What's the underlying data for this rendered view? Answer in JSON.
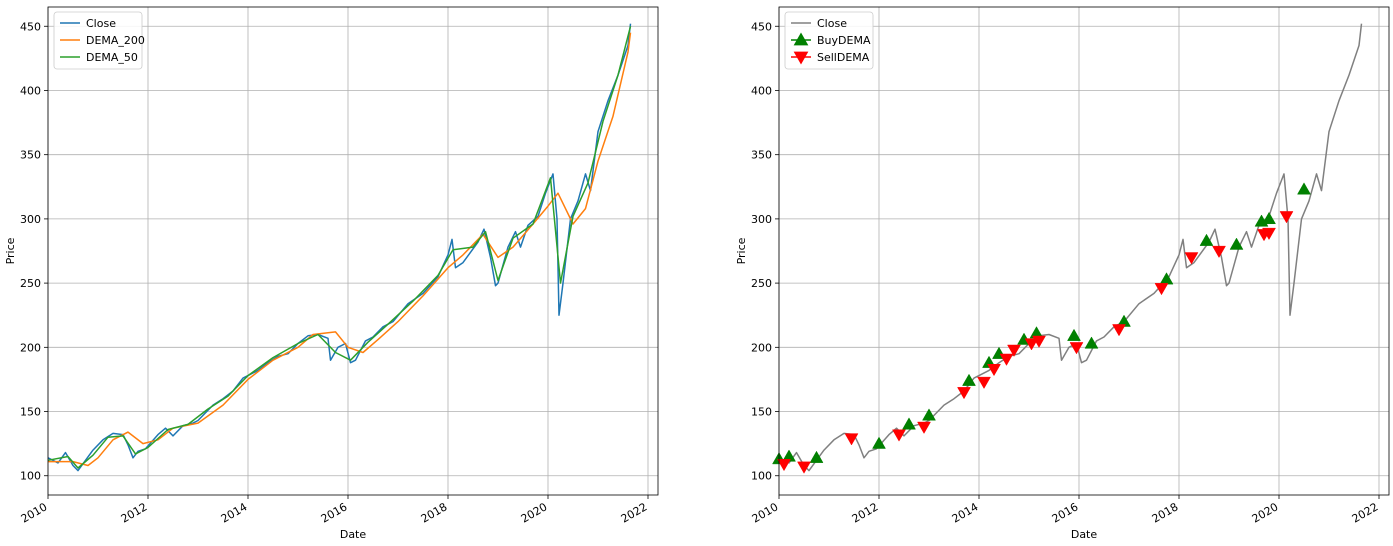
{
  "chart_data": [
    {
      "type": "line",
      "xlabel": "Date",
      "ylabel": "Price",
      "xlim": [
        2010.0,
        2022.2
      ],
      "ylim": [
        85,
        465
      ],
      "x_ticks": [
        2010,
        2012,
        2014,
        2016,
        2018,
        2020,
        2022
      ],
      "y_ticks": [
        100,
        150,
        200,
        250,
        300,
        350,
        400,
        450
      ],
      "grid": true,
      "legend": "upper-left",
      "series": [
        {
          "name": "Close",
          "color": "#1f77b4",
          "points": [
            [
              2010.0,
              114
            ],
            [
              2010.2,
              110
            ],
            [
              2010.35,
              118
            ],
            [
              2010.5,
              108
            ],
            [
              2010.6,
              104
            ],
            [
              2010.75,
              112
            ],
            [
              2010.9,
              120
            ],
            [
              2011.1,
              128
            ],
            [
              2011.3,
              133
            ],
            [
              2011.5,
              132
            ],
            [
              2011.6,
              124
            ],
            [
              2011.7,
              114
            ],
            [
              2011.8,
              119
            ],
            [
              2011.95,
              121
            ],
            [
              2012.2,
              132
            ],
            [
              2012.35,
              137
            ],
            [
              2012.5,
              131
            ],
            [
              2012.7,
              139
            ],
            [
              2012.9,
              141
            ],
            [
              2013.0,
              143
            ],
            [
              2013.3,
              155
            ],
            [
              2013.5,
              160
            ],
            [
              2013.7,
              166
            ],
            [
              2013.9,
              176
            ],
            [
              2014.0,
              178
            ],
            [
              2014.2,
              182
            ],
            [
              2014.4,
              188
            ],
            [
              2014.6,
              193
            ],
            [
              2014.8,
              195
            ],
            [
              2015.0,
              203
            ],
            [
              2015.2,
              209
            ],
            [
              2015.4,
              210
            ],
            [
              2015.6,
              207
            ],
            [
              2015.65,
              190
            ],
            [
              2015.8,
              200
            ],
            [
              2015.95,
              203
            ],
            [
              2016.05,
              188
            ],
            [
              2016.15,
              190
            ],
            [
              2016.35,
              205
            ],
            [
              2016.5,
              208
            ],
            [
              2016.7,
              216
            ],
            [
              2016.9,
              220
            ],
            [
              2017.2,
              234
            ],
            [
              2017.5,
              242
            ],
            [
              2017.8,
              255
            ],
            [
              2018.0,
              272
            ],
            [
              2018.08,
              284
            ],
            [
              2018.15,
              262
            ],
            [
              2018.3,
              266
            ],
            [
              2018.6,
              282
            ],
            [
              2018.72,
              292
            ],
            [
              2018.85,
              270
            ],
            [
              2018.95,
              248
            ],
            [
              2019.0,
              250
            ],
            [
              2019.2,
              278
            ],
            [
              2019.35,
              290
            ],
            [
              2019.45,
              278
            ],
            [
              2019.6,
              295
            ],
            [
              2019.8,
              302
            ],
            [
              2019.95,
              320
            ],
            [
              2020.1,
              335
            ],
            [
              2020.18,
              300
            ],
            [
              2020.22,
              225
            ],
            [
              2020.3,
              250
            ],
            [
              2020.45,
              300
            ],
            [
              2020.6,
              314
            ],
            [
              2020.75,
              335
            ],
            [
              2020.85,
              322
            ],
            [
              2021.0,
              368
            ],
            [
              2021.2,
              392
            ],
            [
              2021.4,
              412
            ],
            [
              2021.6,
              435
            ],
            [
              2021.65,
              452
            ]
          ]
        },
        {
          "name": "DEMA_200",
          "color": "#ff7f0e",
          "points": [
            [
              2010.0,
              111
            ],
            [
              2010.5,
              111
            ],
            [
              2010.8,
              108
            ],
            [
              2011.0,
              114
            ],
            [
              2011.3,
              128
            ],
            [
              2011.6,
              134
            ],
            [
              2011.9,
              125
            ],
            [
              2012.2,
              128
            ],
            [
              2012.5,
              137
            ],
            [
              2013.0,
              141
            ],
            [
              2013.5,
              155
            ],
            [
              2014.0,
              175
            ],
            [
              2014.5,
              190
            ],
            [
              2015.0,
              200
            ],
            [
              2015.3,
              210
            ],
            [
              2015.75,
              212
            ],
            [
              2016.0,
              200
            ],
            [
              2016.3,
              196
            ],
            [
              2016.6,
              206
            ],
            [
              2017.0,
              220
            ],
            [
              2017.5,
              240
            ],
            [
              2018.0,
              262
            ],
            [
              2018.3,
              272
            ],
            [
              2018.7,
              288
            ],
            [
              2019.0,
              270
            ],
            [
              2019.3,
              278
            ],
            [
              2019.7,
              296
            ],
            [
              2020.0,
              310
            ],
            [
              2020.2,
              320
            ],
            [
              2020.5,
              296
            ],
            [
              2020.75,
              308
            ],
            [
              2021.0,
              345
            ],
            [
              2021.3,
              380
            ],
            [
              2021.6,
              430
            ],
            [
              2021.65,
              445
            ]
          ]
        },
        {
          "name": "DEMA_50",
          "color": "#2ca02c",
          "points": [
            [
              2010.0,
              112
            ],
            [
              2010.4,
              115
            ],
            [
              2010.6,
              106
            ],
            [
              2010.9,
              116
            ],
            [
              2011.2,
              130
            ],
            [
              2011.5,
              131
            ],
            [
              2011.75,
              117
            ],
            [
              2012.0,
              122
            ],
            [
              2012.4,
              136
            ],
            [
              2012.8,
              140
            ],
            [
              2013.2,
              152
            ],
            [
              2013.6,
              162
            ],
            [
              2014.0,
              178
            ],
            [
              2014.5,
              192
            ],
            [
              2015.0,
              203
            ],
            [
              2015.4,
              210
            ],
            [
              2015.75,
              196
            ],
            [
              2016.05,
              190
            ],
            [
              2016.4,
              204
            ],
            [
              2016.8,
              218
            ],
            [
              2017.3,
              236
            ],
            [
              2017.8,
              256
            ],
            [
              2018.1,
              276
            ],
            [
              2018.5,
              278
            ],
            [
              2018.75,
              290
            ],
            [
              2019.0,
              252
            ],
            [
              2019.3,
              285
            ],
            [
              2019.7,
              296
            ],
            [
              2020.05,
              332
            ],
            [
              2020.25,
              250
            ],
            [
              2020.5,
              302
            ],
            [
              2020.8,
              328
            ],
            [
              2021.1,
              376
            ],
            [
              2021.4,
              412
            ],
            [
              2021.65,
              450
            ]
          ]
        }
      ]
    },
    {
      "type": "line",
      "xlabel": "Date",
      "ylabel": "Price",
      "xlim": [
        2010.0,
        2022.2
      ],
      "ylim": [
        85,
        465
      ],
      "x_ticks": [
        2010,
        2012,
        2014,
        2016,
        2018,
        2020,
        2022
      ],
      "y_ticks": [
        100,
        150,
        200,
        250,
        300,
        350,
        400,
        450
      ],
      "grid": true,
      "legend": "upper-left",
      "series": [
        {
          "name": "Close",
          "color": "#808080",
          "points": [
            [
              2010.0,
              114
            ],
            [
              2010.2,
              110
            ],
            [
              2010.35,
              118
            ],
            [
              2010.5,
              108
            ],
            [
              2010.6,
              104
            ],
            [
              2010.75,
              112
            ],
            [
              2010.9,
              120
            ],
            [
              2011.1,
              128
            ],
            [
              2011.3,
              133
            ],
            [
              2011.5,
              132
            ],
            [
              2011.6,
              124
            ],
            [
              2011.7,
              114
            ],
            [
              2011.8,
              119
            ],
            [
              2011.95,
              121
            ],
            [
              2012.2,
              132
            ],
            [
              2012.35,
              137
            ],
            [
              2012.5,
              131
            ],
            [
              2012.7,
              139
            ],
            [
              2012.9,
              141
            ],
            [
              2013.0,
              143
            ],
            [
              2013.3,
              155
            ],
            [
              2013.5,
              160
            ],
            [
              2013.7,
              166
            ],
            [
              2013.9,
              176
            ],
            [
              2014.0,
              178
            ],
            [
              2014.2,
              182
            ],
            [
              2014.4,
              188
            ],
            [
              2014.6,
              193
            ],
            [
              2014.8,
              195
            ],
            [
              2015.0,
              203
            ],
            [
              2015.2,
              209
            ],
            [
              2015.4,
              210
            ],
            [
              2015.6,
              207
            ],
            [
              2015.65,
              190
            ],
            [
              2015.8,
              200
            ],
            [
              2015.95,
              203
            ],
            [
              2016.05,
              188
            ],
            [
              2016.15,
              190
            ],
            [
              2016.35,
              205
            ],
            [
              2016.5,
              208
            ],
            [
              2016.7,
              216
            ],
            [
              2016.9,
              220
            ],
            [
              2017.2,
              234
            ],
            [
              2017.5,
              242
            ],
            [
              2017.8,
              255
            ],
            [
              2018.0,
              272
            ],
            [
              2018.08,
              284
            ],
            [
              2018.15,
              262
            ],
            [
              2018.3,
              266
            ],
            [
              2018.6,
              282
            ],
            [
              2018.72,
              292
            ],
            [
              2018.85,
              270
            ],
            [
              2018.95,
              248
            ],
            [
              2019.0,
              250
            ],
            [
              2019.2,
              278
            ],
            [
              2019.35,
              290
            ],
            [
              2019.45,
              278
            ],
            [
              2019.6,
              295
            ],
            [
              2019.8,
              302
            ],
            [
              2019.95,
              320
            ],
            [
              2020.1,
              335
            ],
            [
              2020.18,
              300
            ],
            [
              2020.22,
              225
            ],
            [
              2020.3,
              250
            ],
            [
              2020.45,
              300
            ],
            [
              2020.6,
              314
            ],
            [
              2020.75,
              335
            ],
            [
              2020.85,
              322
            ],
            [
              2021.0,
              368
            ],
            [
              2021.2,
              392
            ],
            [
              2021.4,
              412
            ],
            [
              2021.6,
              435
            ],
            [
              2021.65,
              452
            ]
          ]
        },
        {
          "name": "BuyDEMA",
          "color": "#008000",
          "marker": "triangle-up",
          "points": [
            [
              2010.0,
              113
            ],
            [
              2010.2,
              115
            ],
            [
              2010.75,
              114
            ],
            [
              2012.0,
              125
            ],
            [
              2012.6,
              140
            ],
            [
              2013.0,
              147
            ],
            [
              2013.8,
              174
            ],
            [
              2014.2,
              188
            ],
            [
              2014.4,
              195
            ],
            [
              2014.9,
              206
            ],
            [
              2015.15,
              211
            ],
            [
              2015.9,
              209
            ],
            [
              2016.25,
              203
            ],
            [
              2016.9,
              220
            ],
            [
              2017.75,
              253
            ],
            [
              2018.55,
              283
            ],
            [
              2019.15,
              280
            ],
            [
              2019.65,
              298
            ],
            [
              2019.8,
              300
            ],
            [
              2020.5,
              323
            ]
          ]
        },
        {
          "name": "SellDEMA",
          "color": "#ff0000",
          "marker": "triangle-down",
          "points": [
            [
              2010.1,
              109
            ],
            [
              2010.5,
              107
            ],
            [
              2011.45,
              129
            ],
            [
              2012.4,
              132
            ],
            [
              2012.9,
              138
            ],
            [
              2013.7,
              165
            ],
            [
              2014.1,
              173
            ],
            [
              2014.3,
              183
            ],
            [
              2014.55,
              191
            ],
            [
              2014.7,
              198
            ],
            [
              2015.05,
              203
            ],
            [
              2015.2,
              205
            ],
            [
              2015.95,
              200
            ],
            [
              2016.8,
              214
            ],
            [
              2017.65,
              246
            ],
            [
              2018.25,
              270
            ],
            [
              2018.8,
              275
            ],
            [
              2019.7,
              288
            ],
            [
              2019.8,
              289
            ],
            [
              2020.15,
              302
            ]
          ]
        }
      ]
    }
  ]
}
